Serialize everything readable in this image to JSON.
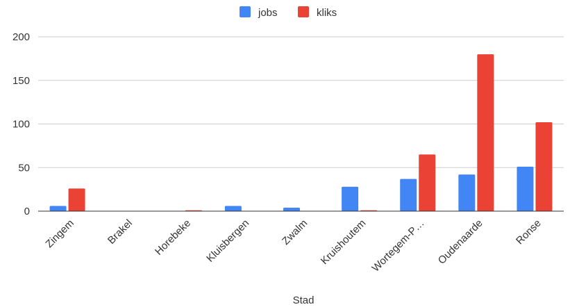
{
  "chart_data": {
    "type": "bar",
    "xlabel": "Stad",
    "ylabel": "",
    "ylim": [
      0,
      200
    ],
    "yticks": [
      0,
      50,
      100,
      150,
      200
    ],
    "grid": true,
    "legend_position": "top",
    "categories": [
      "Zingem",
      "Brakel",
      "Horebeke",
      "Kluisbergen",
      "Zwalm",
      "Kruishoutem",
      "Wortegem-P…",
      "Oudenaarde",
      "Ronse"
    ],
    "series": [
      {
        "name": "jobs",
        "color": "#4285f4",
        "values": [
          6,
          0,
          0,
          6,
          4,
          28,
          37,
          42,
          51
        ]
      },
      {
        "name": "kliks",
        "color": "#ea4335",
        "values": [
          26,
          0,
          1,
          0,
          0,
          1,
          65,
          180,
          102
        ]
      }
    ]
  }
}
